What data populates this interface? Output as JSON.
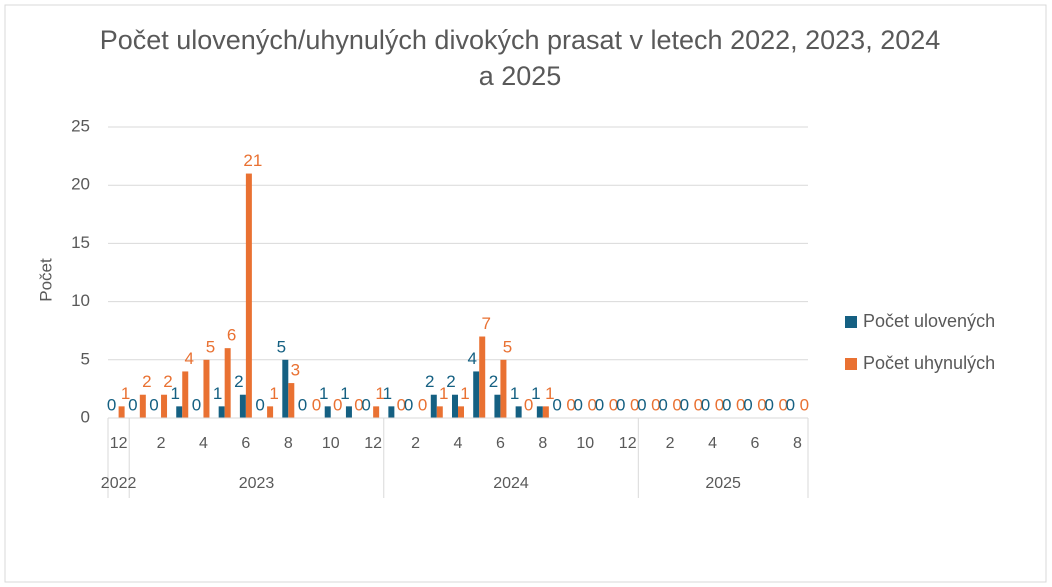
{
  "chart_data": {
    "type": "bar",
    "title": "Počet ulovených/uhynulých divokých prasat v letech 2022, 2023, 2024 a 2025",
    "y_label": "Počet",
    "categories": [
      "12",
      null,
      "2",
      null,
      "4",
      null,
      "6",
      null,
      "8",
      null,
      "10",
      null,
      "12",
      null,
      "2",
      null,
      "4",
      null,
      "6",
      null,
      "8",
      null,
      "10",
      null,
      "12",
      null,
      "2",
      null,
      "4",
      null,
      "6",
      null,
      "8"
    ],
    "groups": [
      "2022",
      "2023",
      "2024",
      "2025"
    ],
    "series": [
      {
        "name": "Počet ulovených",
        "color": "#156082",
        "values": [
          0,
          0,
          0,
          1,
          0,
          1,
          2,
          0,
          5,
          0,
          1,
          1,
          0,
          1,
          0,
          2,
          2,
          4,
          2,
          1,
          1,
          0,
          0,
          0,
          0,
          0,
          0,
          0,
          0,
          0,
          0,
          0,
          0
        ]
      },
      {
        "name": "Počet uhynulých",
        "color": "#e97132",
        "values": [
          1,
          2,
          2,
          4,
          5,
          6,
          21,
          1,
          3,
          0,
          0,
          0,
          1,
          0,
          0,
          1,
          1,
          7,
          5,
          0,
          1,
          0,
          0,
          0,
          0,
          0,
          0,
          0,
          0,
          0,
          0,
          0,
          0
        ]
      }
    ],
    "ylim": [
      0,
      25
    ],
    "yticks": [
      0,
      5,
      10,
      15,
      20,
      25
    ],
    "grid": true,
    "legend": "right"
  }
}
